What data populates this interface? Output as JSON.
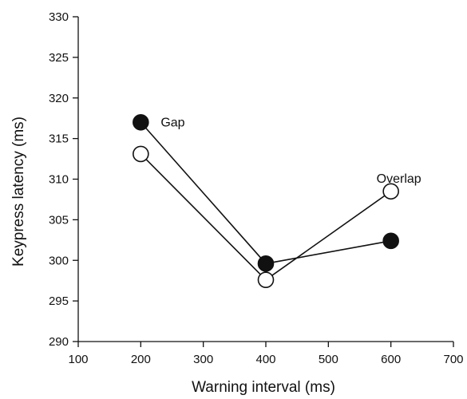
{
  "chart_data": {
    "type": "line",
    "title": "",
    "xlabel": "Warning interval (ms)",
    "ylabel": "Keypress latency (ms)",
    "xlim": [
      100,
      700
    ],
    "ylim": [
      290,
      330
    ],
    "xticks": [
      100,
      200,
      300,
      400,
      500,
      600,
      700
    ],
    "yticks": [
      290,
      295,
      300,
      305,
      310,
      315,
      320,
      325,
      330
    ],
    "grid": false,
    "legend": "none",
    "series": [
      {
        "name": "Gap",
        "marker": "filled-circle",
        "color": "#111111",
        "x": [
          200,
          400,
          600
        ],
        "y": [
          317,
          299.6,
          302.4
        ]
      },
      {
        "name": "Overlap",
        "marker": "open-circle",
        "color": "#111111",
        "x": [
          200,
          400,
          600
        ],
        "y": [
          313.1,
          297.6,
          308.5
        ]
      }
    ]
  }
}
